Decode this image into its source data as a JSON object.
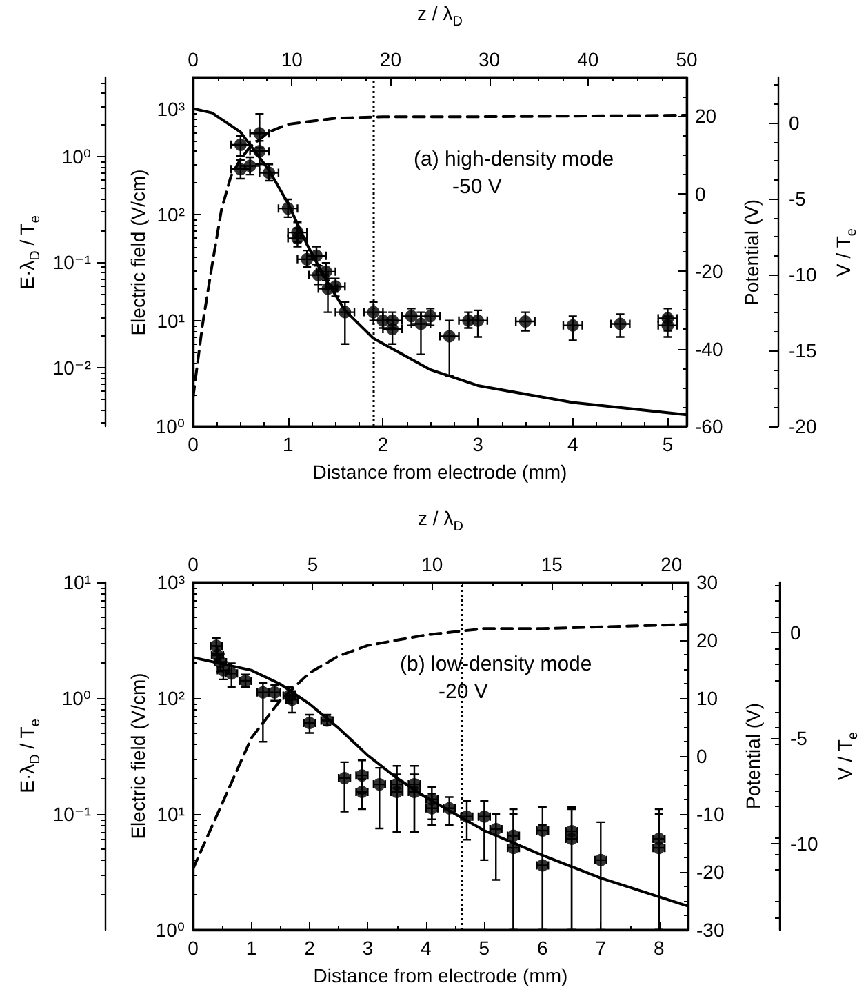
{
  "chart_data": [
    {
      "type": "scatter",
      "xlabel": "Distance from electrode (mm)",
      "x2label": "z / λ$_{D}$",
      "ylabel": "Electric field (V/cm)",
      "y2label": "Potential (V)",
      "xlim": [
        0,
        5.2
      ],
      "xticks": [
        0,
        1,
        2,
        3,
        4,
        5
      ],
      "x2lim": [
        0,
        50
      ],
      "x2ticks": [
        0,
        10,
        20,
        30,
        40,
        50
      ],
      "ylim": [
        1,
        2000
      ],
      "yticks": [
        {
          "value": 1,
          "label": "10⁰"
        },
        {
          "value": 10,
          "label": "10¹"
        },
        {
          "value": 100,
          "label": "10²"
        },
        {
          "value": 1000,
          "label": "10³"
        }
      ],
      "y2lim": [
        -60,
        30
      ],
      "y2ticks": [
        -60,
        -40,
        -20,
        0,
        20
      ],
      "log": "y",
      "annotations": [
        "(a) high-density mode",
        "-50 V"
      ],
      "ref_lines": [
        {
          "axis": "x",
          "value": 1.9,
          "line_style": "dotted"
        }
      ],
      "series": [
        {
          "color": "#000000",
          "marker": "circle",
          "x": [
            0.5,
            0.5,
            0.6,
            0.7,
            0.7,
            0.8,
            1.0,
            1.1,
            1.1,
            1.2,
            1.3,
            1.32,
            1.4,
            1.42,
            1.5,
            1.6,
            1.9,
            2.0,
            2.1,
            2.1,
            2.3,
            2.4,
            2.5,
            2.7,
            2.9,
            3.0,
            3.5,
            4.0,
            4.5,
            5.0,
            5.0
          ],
          "values": [
            460,
            270,
            290,
            590,
            400,
            250,
            115,
            68,
            60,
            38,
            41,
            27,
            29,
            20,
            21,
            12,
            12,
            10,
            10,
            8.3,
            11,
            9.3,
            11,
            7.1,
            10,
            10,
            9.8,
            9,
            9.3,
            10.5,
            9
          ],
          "errors": [
            [
              360,
              560
            ],
            [
              220,
              330
            ],
            [
              240,
              350
            ],
            [
              430,
              900
            ],
            [
              300,
              500
            ],
            [
              210,
              300
            ],
            [
              95,
              140
            ],
            [
              55,
              85
            ],
            [
              50,
              75
            ],
            [
              32,
              46
            ],
            [
              34,
              50
            ],
            [
              22,
              33
            ],
            [
              24,
              35
            ],
            [
              12,
              25
            ],
            [
              17,
              25
            ],
            [
              6,
              15
            ],
            [
              10,
              15
            ],
            [
              8.5,
              12
            ],
            [
              8.5,
              12
            ],
            [
              6,
              10
            ],
            [
              9,
              13
            ],
            [
              4.8,
              12
            ],
            [
              9,
              13
            ],
            [
              3,
              10
            ],
            [
              8.5,
              12
            ],
            [
              7,
              12.5
            ],
            [
              8,
              12
            ],
            [
              6.5,
              11
            ],
            [
              7,
              11.5
            ],
            [
              8,
              13
            ],
            [
              7,
              11
            ]
          ],
          "xerrors": [
            0.1,
            0.1,
            0.1,
            0.1,
            0.1,
            0.1,
            0.1,
            0.1,
            0.1,
            0.1,
            0.1,
            0.1,
            0.1,
            0.1,
            0.1,
            0.1,
            0.1,
            0.1,
            0.1,
            0.1,
            0.1,
            0.1,
            0.1,
            0.1,
            0.1,
            0.1,
            0.1,
            0.1,
            0.1,
            0.1,
            0.1
          ]
        }
      ]
    },
    {
      "type": "line",
      "ylabel": "E·λ$_{D}$ / T$_{e}$",
      "y2label": "V / T$_{e}$",
      "log": "y",
      "tick_labels": "y",
      "xlim": [
        0,
        5.2
      ],
      "ylim": [
        0.0028,
        5.6
      ],
      "yticks": [
        {
          "value": 0.01,
          "label": "10⁻²"
        },
        {
          "value": 0.1,
          "label": "10⁻¹"
        },
        {
          "value": 1,
          "label": "10⁰"
        }
      ],
      "y2lim": [
        -20,
        3
      ],
      "y2ticks": [
        -20,
        -15,
        -10,
        -5,
        0
      ],
      "series": [
        {
          "color": "#000000",
          "marker": "none",
          "line_style": "solid",
          "x": [
            0,
            0.2,
            0.5,
            0.8,
            1.0,
            1.2,
            1.4,
            1.6,
            1.9,
            2.5,
            3.0,
            4.0,
            5.2
          ],
          "values": [
            2.83,
            2.58,
            1.7,
            0.74,
            0.36,
            0.147,
            0.068,
            0.035,
            0.019,
            0.0096,
            0.0068,
            0.0047,
            0.0036
          ]
        },
        {
          "axis": "y2",
          "color": "#000000",
          "marker": "none",
          "line_style": "dashed",
          "x": [
            0,
            0.1,
            0.2,
            0.3,
            0.4,
            0.5,
            0.6,
            0.8,
            1.0,
            1.5,
            2.0,
            3.0,
            5.2
          ],
          "values": [
            -18.1,
            -13.3,
            -9.4,
            -5.7,
            -3.5,
            -2.4,
            -1.6,
            -0.6,
            -0.1,
            0.3,
            0.4,
            0.4,
            0.5
          ]
        }
      ]
    },
    {
      "type": "scatter",
      "xlabel": "Distance from electrode (mm)",
      "x2label": "z / λ$_{D}$",
      "ylabel": "Electric field (V/cm)",
      "y2label": "Potential (V)",
      "xlim": [
        0,
        8.5
      ],
      "xticks": [
        0,
        1,
        2,
        3,
        4,
        5,
        6,
        7,
        8
      ],
      "x2lim": [
        0,
        20.7
      ],
      "x2ticks": [
        0,
        5,
        10,
        15,
        20
      ],
      "ylim": [
        1,
        1000
      ],
      "yticks": [
        {
          "value": 1,
          "label": "10⁰"
        },
        {
          "value": 10,
          "label": "10¹"
        },
        {
          "value": 100,
          "label": "10²"
        },
        {
          "value": 1000,
          "label": "10³"
        }
      ],
      "y2lim": [
        -30,
        30
      ],
      "y2ticks": [
        -30,
        -20,
        -10,
        0,
        10,
        20,
        30
      ],
      "log": "y",
      "annotations": [
        "(b) low-density mode",
        "-20 V"
      ],
      "ref_lines": [
        {
          "axis": "x",
          "value": 4.6,
          "line_style": "dotted"
        }
      ],
      "series": [
        {
          "color": "#000000",
          "marker": "circle",
          "x": [
            0.4,
            0.42,
            0.47,
            0.52,
            0.66,
            0.9,
            1.2,
            1.4,
            1.65,
            1.7,
            2.0,
            2.3,
            2.6,
            2.9,
            2.9,
            3.2,
            3.5,
            3.5,
            3.8,
            3.8,
            4.1,
            4.1,
            4.4,
            4.7,
            5.0,
            5.2,
            5.5,
            5.5,
            6.0,
            6.0,
            6.5,
            6.5,
            7.0,
            8.0,
            8.0
          ],
          "values": [
            282,
            234,
            204,
            174,
            163,
            141,
            112,
            112,
            105,
            97,
            61,
            64,
            20.4,
            21.5,
            15.5,
            18,
            18,
            15.5,
            18,
            15.5,
            13.4,
            11.2,
            11.2,
            9.5,
            9.5,
            7.4,
            6.5,
            5.1,
            7.2,
            3.6,
            7.1,
            6.1,
            4.0,
            6.1,
            5.1
          ],
          "errors": [
            [
              240,
              330
            ],
            [
              200,
              280
            ],
            [
              170,
              240
            ],
            [
              145,
              205
            ],
            [
              125,
              200
            ],
            [
              125,
              160
            ],
            [
              42,
              135
            ],
            [
              95,
              130
            ],
            [
              90,
              125
            ],
            [
              75,
              115
            ],
            [
              50,
              72
            ],
            [
              58,
              72
            ],
            [
              10.5,
              28
            ],
            [
              15,
              29
            ],
            [
              11,
              20
            ],
            [
              7.5,
              25
            ],
            [
              7,
              26
            ],
            [
              7,
              22
            ],
            [
              7,
              26
            ],
            [
              7,
              22
            ],
            [
              9,
              17
            ],
            [
              8,
              15
            ],
            [
              8,
              14
            ],
            [
              6,
              13
            ],
            [
              4,
              13
            ],
            [
              2.7,
              10
            ],
            [
              1,
              11
            ],
            [
              1,
              10
            ],
            [
              1,
              11.5
            ],
            [
              1,
              8
            ],
            [
              1,
              11.5
            ],
            [
              1,
              11
            ],
            [
              1,
              8.5
            ],
            [
              1,
              11
            ],
            [
              1,
              10
            ]
          ],
          "xerrors": [
            0.1,
            0.1,
            0.1,
            0.1,
            0.1,
            0.1,
            0.1,
            0.1,
            0.1,
            0.1,
            0.1,
            0.1,
            0.1,
            0.1,
            0.1,
            0.1,
            0.1,
            0.1,
            0.1,
            0.1,
            0.1,
            0.1,
            0.1,
            0.1,
            0.1,
            0.1,
            0.1,
            0.1,
            0.1,
            0.1,
            0.1,
            0.1,
            0.1,
            0.1,
            0.1
          ]
        }
      ]
    },
    {
      "type": "line",
      "ylabel": "E·λ$_{D}$ / T$_{e}$",
      "y2label": "V / T$_{e}$",
      "log": "y",
      "tick_labels": "y",
      "xlim": [
        0,
        8.5
      ],
      "ylim": [
        0.01,
        10
      ],
      "yticks": [
        {
          "value": 0.1,
          "label": "10⁻¹"
        },
        {
          "value": 1,
          "label": "10⁰"
        },
        {
          "value": 10,
          "label": "10¹"
        }
      ],
      "y2lim": [
        -14.1,
        2.4
      ],
      "y2ticks": [
        -10,
        -5,
        0
      ],
      "series": [
        {
          "color": "#000000",
          "marker": "none",
          "line_style": "solid",
          "x": [
            0,
            1,
            1.5,
            2,
            2.5,
            3,
            3.5,
            4,
            5,
            6,
            7,
            8.5
          ],
          "values": [
            2.24,
            1.74,
            1.32,
            0.89,
            0.55,
            0.32,
            0.204,
            0.139,
            0.072,
            0.044,
            0.028,
            0.016
          ]
        },
        {
          "axis": "y2",
          "color": "#000000",
          "marker": "none",
          "line_style": "dashed",
          "x": [
            0,
            0.5,
            1,
            1.5,
            2,
            2.5,
            3,
            4,
            5,
            6,
            8.5
          ],
          "values": [
            -11.2,
            -8.1,
            -5.0,
            -3.2,
            -1.9,
            -1.1,
            -0.6,
            -0.1,
            0.2,
            0.2,
            0.4
          ]
        }
      ]
    }
  ]
}
